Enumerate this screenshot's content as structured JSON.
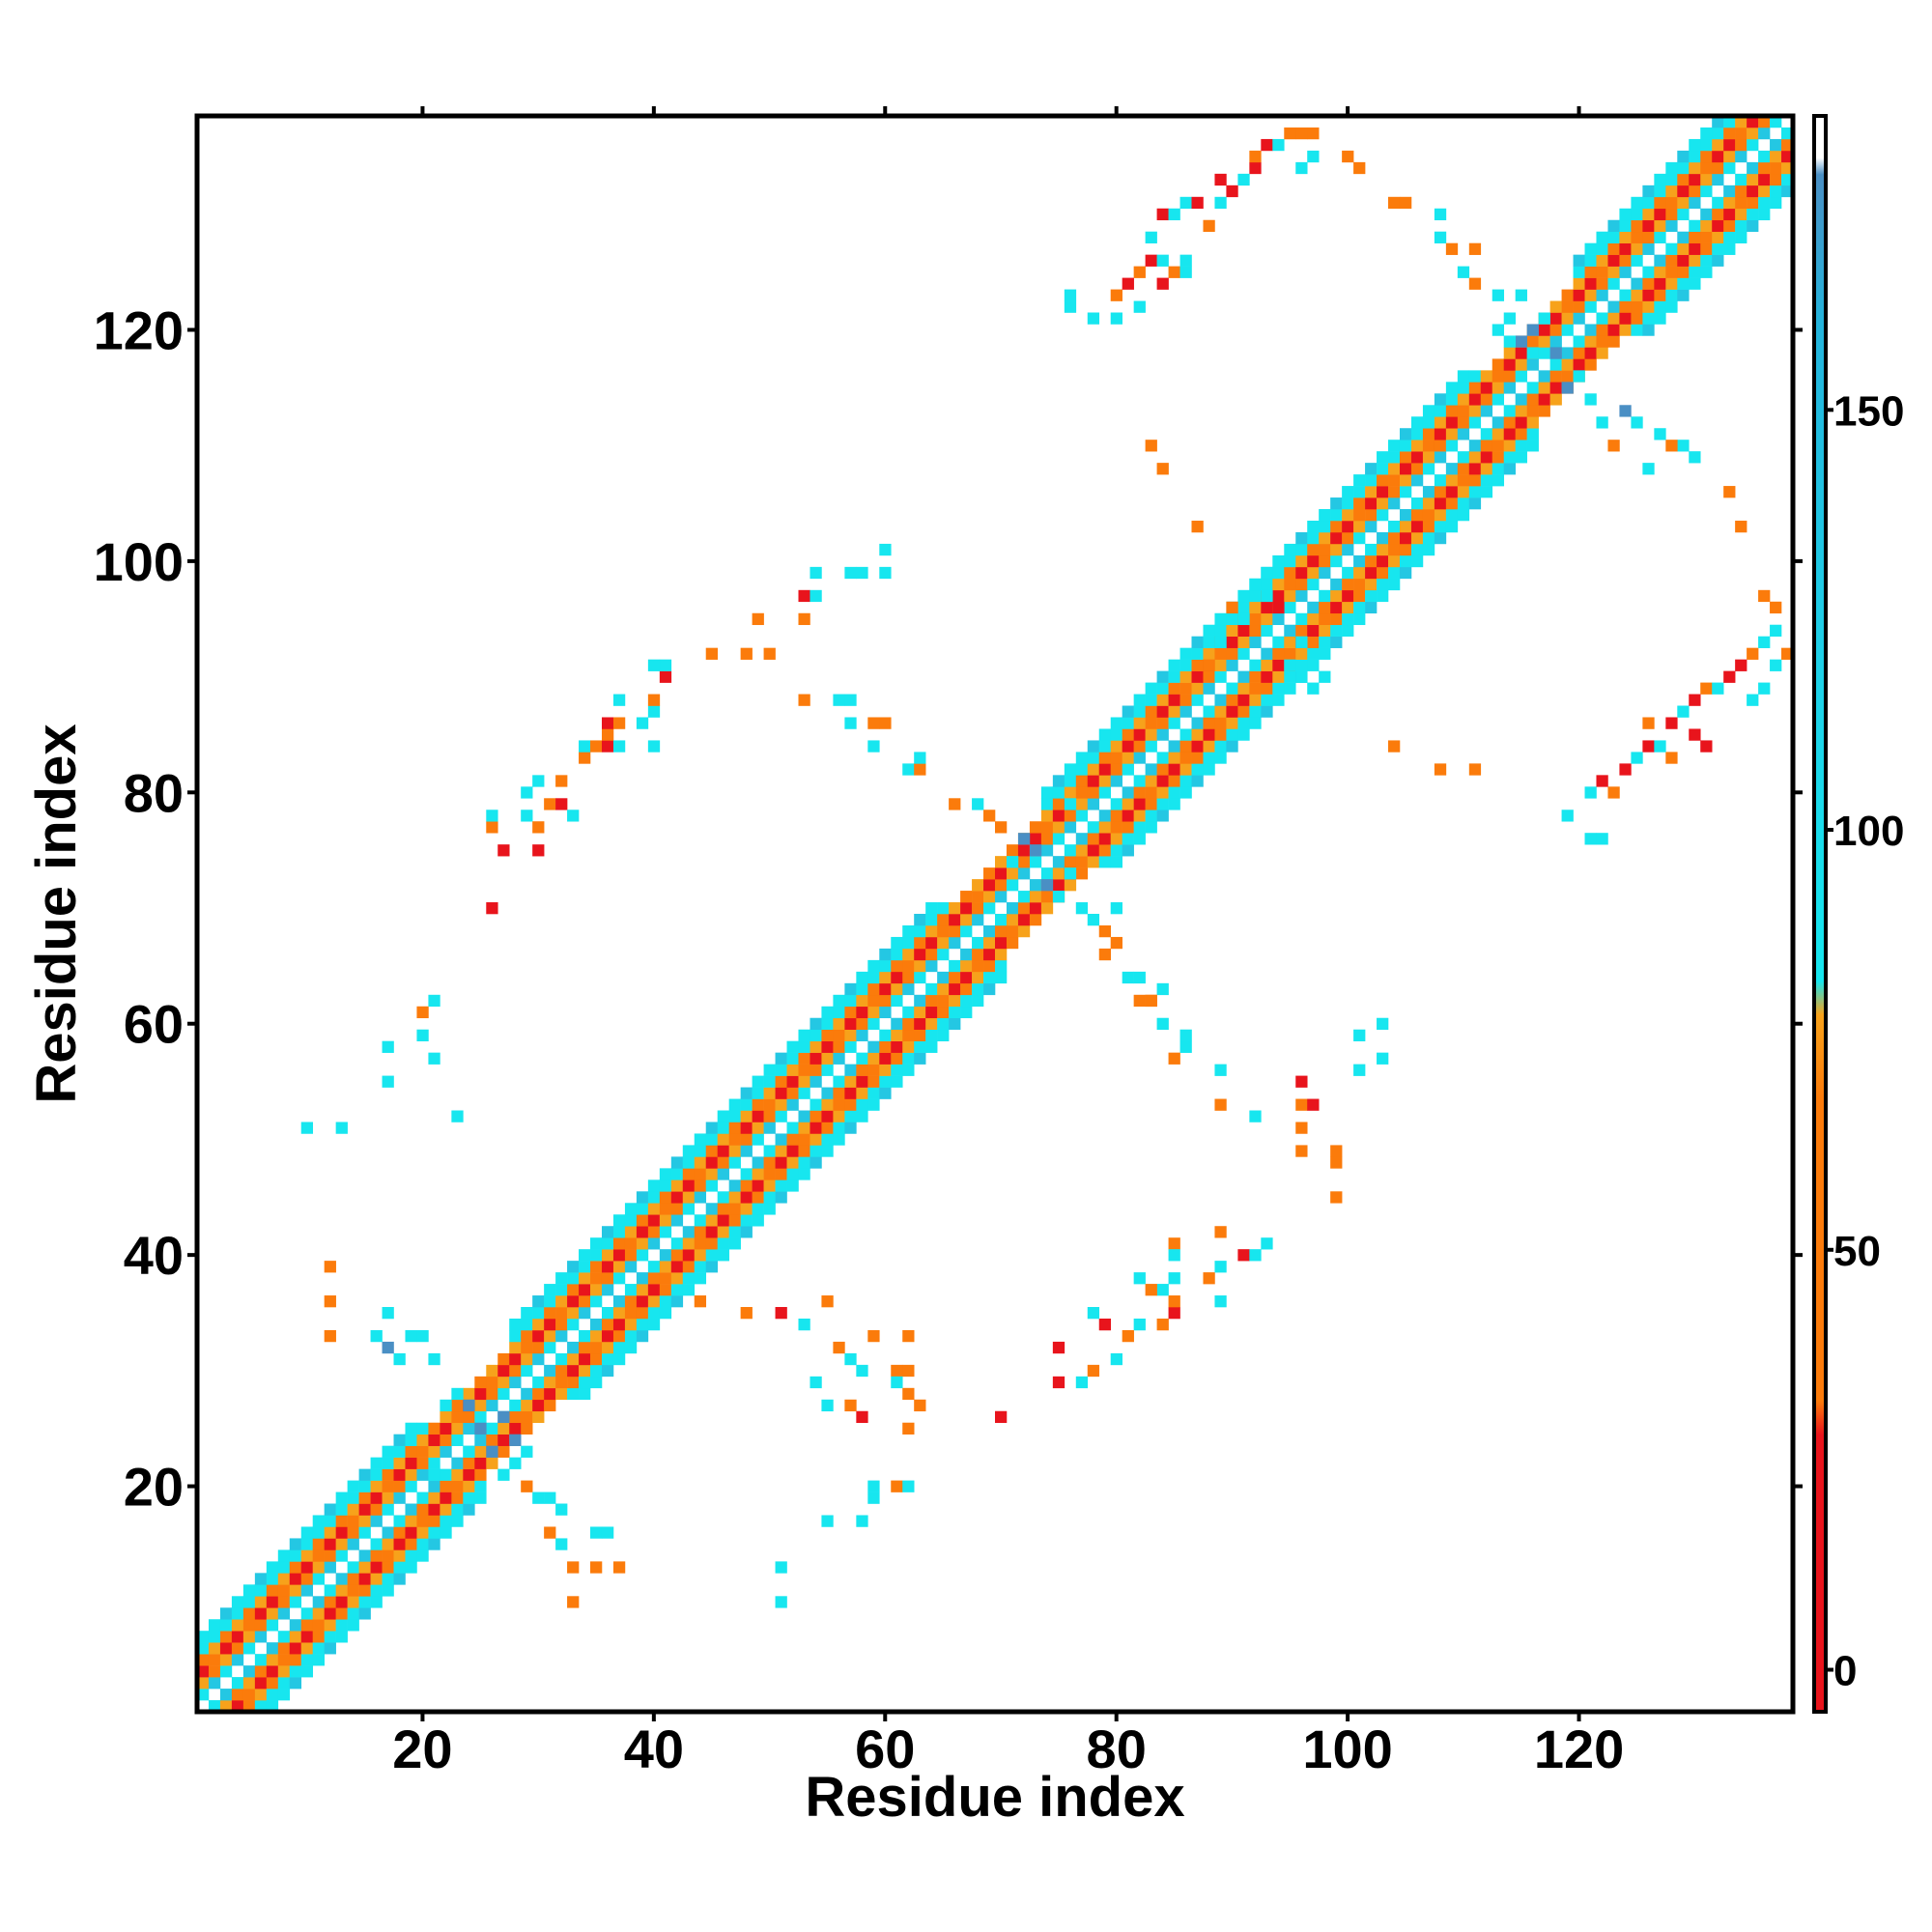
{
  "chart_data": {
    "type": "heatmap",
    "title": "",
    "xlabel": "Residue index",
    "ylabel": "Residue index",
    "xlim": [
      1,
      138
    ],
    "ylim": [
      1,
      138
    ],
    "x_ticks": [
      20,
      40,
      60,
      80,
      100,
      120
    ],
    "y_ticks": [
      20,
      40,
      60,
      80,
      100,
      120
    ],
    "grid": false,
    "legend": "none",
    "colorbar": {
      "position": "right",
      "range": [
        -5,
        185
      ],
      "ticks": [
        0,
        50,
        100,
        150
      ],
      "bands": [
        {
          "from": -5,
          "to": 30,
          "color": "#e8141c"
        },
        {
          "from": 30,
          "to": 80,
          "color": "#fb7b0b"
        },
        {
          "from": 80,
          "to": 180,
          "color": "#1fd0e8"
        },
        {
          "from": 180,
          "to": 185,
          "color": "#ffffff"
        }
      ]
    },
    "colors": {
      "red": "#e8141c",
      "orange": "#fb7b0b",
      "amber": "#f7a21b",
      "cyan": "#17e6ef",
      "sky": "#24c7e3",
      "steel": "#4a8fc4"
    },
    "band_structure": {
      "description_values": "value by sequence separation |i-j| near diagonal",
      "separation_levels": [
        {
          "sep": 0,
          "color": "white"
        },
        {
          "sep": 1,
          "color": "cyan"
        },
        {
          "sep": 2,
          "color": "orange"
        },
        {
          "sep": 3,
          "color": "red"
        },
        {
          "sep": 4,
          "color": "orange"
        },
        {
          "sep": 5,
          "color": "cyan"
        }
      ]
    },
    "helix_segments": [
      [
        1,
        25
      ],
      [
        28,
        70
      ],
      [
        74,
        116
      ],
      [
        120,
        138
      ]
    ],
    "off_diagonal_cells": [
      [
        75,
        29,
        "red"
      ],
      [
        70,
        26,
        "red"
      ],
      [
        75,
        32,
        "red"
      ],
      [
        77,
        29,
        "cyan"
      ],
      [
        78,
        30,
        "orange"
      ],
      [
        80,
        31,
        "cyan"
      ],
      [
        81,
        33,
        "orange"
      ],
      [
        82,
        34,
        "cyan"
      ],
      [
        79,
        34,
        "red"
      ],
      [
        78,
        35,
        "cyan"
      ],
      [
        84,
        34,
        "orange"
      ],
      [
        85,
        35,
        "red"
      ],
      [
        85,
        36,
        "orange"
      ],
      [
        84,
        37,
        "cyan"
      ],
      [
        89,
        36,
        "cyan"
      ],
      [
        88,
        38,
        "orange"
      ],
      [
        89,
        39,
        "cyan"
      ],
      [
        91,
        40,
        "red"
      ],
      [
        92,
        40,
        "cyan"
      ],
      [
        85,
        41,
        "orange"
      ],
      [
        89,
        42,
        "orange"
      ],
      [
        85,
        38,
        "cyan"
      ],
      [
        82,
        38,
        "cyan"
      ],
      [
        83,
        37,
        "orange"
      ],
      [
        85,
        40,
        "cyan"
      ],
      [
        51,
        10,
        "cyan"
      ],
      [
        51,
        13,
        "cyan"
      ],
      [
        55,
        17,
        "cyan"
      ],
      [
        58,
        17,
        "cyan"
      ],
      [
        59,
        19,
        "cyan"
      ],
      [
        61,
        20,
        "orange"
      ],
      [
        62,
        20,
        "cyan"
      ],
      [
        59,
        20,
        "cyan"
      ],
      [
        62,
        30,
        "orange"
      ],
      [
        62,
        33,
        "orange"
      ],
      [
        59,
        33,
        "orange"
      ],
      [
        55,
        36,
        "orange"
      ],
      [
        93,
        41,
        "cyan"
      ],
      [
        96,
        49,
        "orange"
      ],
      [
        92,
        52,
        "cyan"
      ],
      [
        96,
        53,
        "orange"
      ],
      [
        96,
        55,
        "red"
      ],
      [
        84,
        60,
        "cyan"
      ],
      [
        103,
        57,
        "cyan"
      ],
      [
        103,
        60,
        "cyan"
      ],
      [
        101,
        59,
        "cyan"
      ],
      [
        101,
        56,
        "cyan"
      ],
      [
        84,
        63,
        "cyan"
      ],
      [
        82,
        62,
        "orange"
      ],
      [
        83,
        62,
        "orange"
      ],
      [
        81,
        64,
        "cyan"
      ],
      [
        99,
        45,
        "orange"
      ],
      [
        99,
        48,
        "orange"
      ],
      [
        99,
        49,
        "orange"
      ],
      [
        97,
        53,
        "red"
      ],
      [
        96,
        51,
        "orange"
      ],
      [
        89,
        53,
        "orange"
      ],
      [
        89,
        56,
        "cyan"
      ],
      [
        86,
        58,
        "cyan"
      ],
      [
        86,
        59,
        "cyan"
      ],
      [
        85,
        57,
        "orange"
      ],
      [
        83,
        62,
        "orange"
      ],
      [
        82,
        64,
        "cyan"
      ],
      [
        13,
        51,
        "cyan"
      ],
      [
        10,
        51,
        "cyan"
      ],
      [
        17,
        55,
        "cyan"
      ],
      [
        20,
        59,
        "cyan"
      ],
      [
        20,
        61,
        "orange"
      ],
      [
        21,
        62,
        "cyan"
      ],
      [
        23,
        52,
        "cyan"
      ],
      [
        21,
        57,
        "cyan"
      ],
      [
        17,
        58,
        "cyan"
      ],
      [
        27,
        75,
        "red"
      ],
      [
        30,
        75,
        "red"
      ],
      [
        26,
        70,
        "red"
      ],
      [
        26,
        77,
        "orange"
      ],
      [
        26,
        78,
        "cyan"
      ],
      [
        29,
        78,
        "cyan"
      ],
      [
        30,
        77,
        "orange"
      ],
      [
        31,
        79,
        "orange"
      ],
      [
        29,
        80,
        "cyan"
      ],
      [
        30,
        81,
        "cyan"
      ],
      [
        32,
        81,
        "orange"
      ],
      [
        32,
        79,
        "red"
      ],
      [
        33,
        78,
        "cyan"
      ],
      [
        34,
        83,
        "orange"
      ],
      [
        34,
        84,
        "cyan"
      ],
      [
        35,
        84,
        "orange"
      ],
      [
        36,
        84,
        "red"
      ],
      [
        36,
        85,
        "orange"
      ],
      [
        36,
        86,
        "red"
      ],
      [
        37,
        84,
        "cyan"
      ],
      [
        37,
        86,
        "orange"
      ],
      [
        37,
        88,
        "cyan"
      ],
      [
        40,
        84,
        "cyan"
      ],
      [
        39,
        86,
        "cyan"
      ],
      [
        40,
        87,
        "cyan"
      ],
      [
        40,
        88,
        "orange"
      ],
      [
        41,
        90,
        "red"
      ],
      [
        41,
        91,
        "cyan"
      ],
      [
        40,
        91,
        "cyan"
      ],
      [
        45,
        92,
        "orange"
      ],
      [
        48,
        92,
        "orange"
      ],
      [
        50,
        92,
        "orange"
      ],
      [
        49,
        95,
        "orange"
      ],
      [
        53,
        95,
        "orange"
      ],
      [
        53,
        97,
        "red"
      ],
      [
        54,
        97,
        "cyan"
      ],
      [
        54,
        99,
        "cyan"
      ],
      [
        57,
        99,
        "cyan"
      ],
      [
        58,
        99,
        "cyan"
      ],
      [
        60,
        99,
        "cyan"
      ],
      [
        60,
        101,
        "cyan"
      ],
      [
        53,
        88,
        "orange"
      ],
      [
        56,
        88,
        "cyan"
      ],
      [
        57,
        88,
        "cyan"
      ],
      [
        57,
        86,
        "cyan"
      ],
      [
        60,
        86,
        "orange"
      ],
      [
        59,
        86,
        "orange"
      ],
      [
        59,
        84,
        "cyan"
      ],
      [
        62,
        82,
        "cyan"
      ],
      [
        63,
        82,
        "orange"
      ],
      [
        63,
        83,
        "cyan"
      ],
      [
        76,
        122,
        "cyan"
      ],
      [
        76,
        123,
        "cyan"
      ],
      [
        78,
        121,
        "cyan"
      ],
      [
        80,
        121,
        "cyan"
      ],
      [
        80,
        123,
        "orange"
      ],
      [
        82,
        122,
        "cyan"
      ],
      [
        81,
        124,
        "red"
      ],
      [
        82,
        125,
        "orange"
      ],
      [
        83,
        126,
        "red"
      ],
      [
        84,
        126,
        "cyan"
      ],
      [
        84,
        124,
        "red"
      ],
      [
        85,
        125,
        "orange"
      ],
      [
        86,
        125,
        "cyan"
      ],
      [
        86,
        126,
        "cyan"
      ],
      [
        83,
        128,
        "cyan"
      ],
      [
        84,
        130,
        "red"
      ],
      [
        85,
        130,
        "cyan"
      ],
      [
        86,
        131,
        "cyan"
      ],
      [
        87,
        131,
        "red"
      ],
      [
        88,
        129,
        "orange"
      ],
      [
        89,
        131,
        "cyan"
      ],
      [
        89,
        133,
        "red"
      ],
      [
        90,
        132,
        "red"
      ],
      [
        91,
        133,
        "cyan"
      ],
      [
        92,
        134,
        "red"
      ],
      [
        92,
        135,
        "orange"
      ],
      [
        93,
        136,
        "red"
      ],
      [
        94,
        136,
        "cyan"
      ],
      [
        95,
        137,
        "orange"
      ],
      [
        96,
        137,
        "orange"
      ],
      [
        97,
        137,
        "orange"
      ],
      [
        96,
        134,
        "cyan"
      ],
      [
        97,
        135,
        "cyan"
      ],
      [
        100,
        135,
        "orange"
      ],
      [
        101,
        134,
        "orange"
      ],
      [
        104,
        131,
        "orange"
      ],
      [
        105,
        131,
        "orange"
      ],
      [
        108,
        130,
        "cyan"
      ],
      [
        108,
        128,
        "cyan"
      ],
      [
        109,
        127,
        "orange"
      ],
      [
        111,
        127,
        "orange"
      ],
      [
        110,
        125,
        "cyan"
      ],
      [
        111,
        124,
        "orange"
      ],
      [
        113,
        123,
        "cyan"
      ],
      [
        114,
        121,
        "cyan"
      ],
      [
        115,
        123,
        "cyan"
      ],
      [
        122,
        76,
        "cyan"
      ],
      [
        121,
        76,
        "cyan"
      ],
      [
        119,
        78,
        "cyan"
      ],
      [
        121,
        80,
        "cyan"
      ],
      [
        123,
        80,
        "orange"
      ],
      [
        122,
        81,
        "red"
      ],
      [
        124,
        82,
        "red"
      ],
      [
        125,
        83,
        "cyan"
      ],
      [
        126,
        84,
        "red"
      ],
      [
        126,
        86,
        "orange"
      ],
      [
        128,
        86,
        "red"
      ],
      [
        129,
        87,
        "cyan"
      ],
      [
        130,
        88,
        "red"
      ],
      [
        131,
        89,
        "orange"
      ],
      [
        132,
        89,
        "cyan"
      ],
      [
        133,
        90,
        "red"
      ],
      [
        134,
        91,
        "red"
      ],
      [
        135,
        92,
        "orange"
      ],
      [
        136,
        93,
        "cyan"
      ],
      [
        137,
        94,
        "cyan"
      ],
      [
        130,
        85,
        "red"
      ],
      [
        131,
        84,
        "red"
      ],
      [
        128,
        83,
        "orange"
      ],
      [
        127,
        84,
        "cyan"
      ],
      [
        135,
        88,
        "cyan"
      ],
      [
        136,
        89,
        "cyan"
      ],
      [
        137,
        91,
        "cyan"
      ],
      [
        138,
        92,
        "orange"
      ],
      [
        137,
        96,
        "orange"
      ],
      [
        136,
        97,
        "orange"
      ],
      [
        134,
        103,
        "orange"
      ],
      [
        133,
        106,
        "orange"
      ],
      [
        130,
        109,
        "cyan"
      ],
      [
        129,
        110,
        "cyan"
      ],
      [
        128,
        110,
        "orange"
      ],
      [
        126,
        108,
        "cyan"
      ],
      [
        125,
        112,
        "cyan"
      ],
      [
        124,
        113,
        "steel"
      ],
      [
        127,
        111,
        "cyan"
      ],
      [
        122,
        112,
        "cyan"
      ],
      [
        123,
        110,
        "orange"
      ],
      [
        104,
        84,
        "orange"
      ],
      [
        108,
        82,
        "orange"
      ],
      [
        111,
        82,
        "orange"
      ],
      [
        84,
        108,
        "orange"
      ],
      [
        83,
        110,
        "orange"
      ],
      [
        87,
        103,
        "orange"
      ],
      [
        12,
        39,
        "orange"
      ],
      [
        12,
        36,
        "orange"
      ],
      [
        12,
        33,
        "orange"
      ],
      [
        16,
        33,
        "cyan"
      ],
      [
        17,
        32,
        "steel"
      ],
      [
        17,
        35,
        "cyan"
      ],
      [
        18,
        31,
        "cyan"
      ],
      [
        19,
        33,
        "cyan"
      ],
      [
        20,
        33,
        "cyan"
      ],
      [
        21,
        31,
        "cyan"
      ],
      [
        33,
        10,
        "orange"
      ],
      [
        33,
        13,
        "orange"
      ],
      [
        35,
        13,
        "orange"
      ],
      [
        37,
        13,
        "orange"
      ],
      [
        35,
        16,
        "cyan"
      ],
      [
        36,
        16,
        "cyan"
      ],
      [
        31,
        16,
        "orange"
      ],
      [
        32,
        15,
        "cyan"
      ],
      [
        32,
        18,
        "cyan"
      ],
      [
        31,
        19,
        "cyan"
      ],
      [
        29,
        20,
        "orange"
      ],
      [
        30,
        19,
        "cyan"
      ],
      [
        44,
        36,
        "orange"
      ],
      [
        48,
        35,
        "orange"
      ],
      [
        51,
        35,
        "red"
      ],
      [
        53,
        34,
        "cyan"
      ],
      [
        56,
        32,
        "orange"
      ],
      [
        57,
        31,
        "cyan"
      ],
      [
        58,
        30,
        "cyan"
      ],
      [
        61,
        30,
        "orange"
      ],
      [
        61,
        29,
        "cyan"
      ],
      [
        62,
        28,
        "orange"
      ],
      [
        63,
        27,
        "orange"
      ],
      [
        62,
        25,
        "orange"
      ],
      [
        58,
        26,
        "red"
      ],
      [
        57,
        27,
        "orange"
      ],
      [
        54,
        29,
        "cyan"
      ],
      [
        55,
        27,
        "cyan"
      ],
      [
        73,
        75,
        "steel"
      ],
      [
        72,
        76,
        "steel"
      ],
      [
        74,
        72,
        "steel"
      ],
      [
        75,
        71,
        "cyan"
      ],
      [
        71,
        74,
        "cyan"
      ],
      [
        76,
        73,
        "cyan"
      ],
      [
        77,
        70,
        "cyan"
      ],
      [
        78,
        69,
        "cyan"
      ],
      [
        79,
        68,
        "orange"
      ],
      [
        68,
        79,
        "cyan"
      ],
      [
        69,
        78,
        "orange"
      ],
      [
        70,
        77,
        "orange"
      ],
      [
        66,
        79,
        "orange"
      ],
      [
        79,
        66,
        "orange"
      ],
      [
        80,
        67,
        "orange"
      ],
      [
        76,
        79,
        "cyan"
      ],
      [
        80,
        70,
        "cyan"
      ],
      [
        89,
        93,
        "cyan"
      ],
      [
        91,
        95,
        "cyan"
      ],
      [
        92,
        98,
        "cyan"
      ],
      [
        93,
        97,
        "cyan"
      ],
      [
        94,
        96,
        "red"
      ],
      [
        95,
        91,
        "cyan"
      ],
      [
        96,
        90,
        "cyan"
      ],
      [
        97,
        89,
        "cyan"
      ],
      [
        98,
        90,
        "cyan"
      ],
      [
        93,
        99,
        "cyan"
      ],
      [
        90,
        96,
        "orange"
      ],
      [
        88,
        91,
        "orange"
      ],
      [
        96,
        93,
        "cyan"
      ],
      [
        115,
        119,
        "steel"
      ],
      [
        116,
        120,
        "steel"
      ],
      [
        118,
        118,
        "steel"
      ],
      [
        119,
        115,
        "steel"
      ],
      [
        120,
        116,
        "cyan"
      ],
      [
        121,
        114,
        "cyan"
      ],
      [
        117,
        121,
        "cyan"
      ],
      [
        116,
        118,
        "cyan"
      ],
      [
        113,
        120,
        "cyan"
      ],
      [
        114,
        119,
        "cyan"
      ],
      [
        25,
        25,
        "steel"
      ],
      [
        26,
        23,
        "steel"
      ],
      [
        27,
        26,
        "steel"
      ],
      [
        24,
        27,
        "steel"
      ],
      [
        23,
        28,
        "cyan"
      ],
      [
        22,
        27,
        "cyan"
      ],
      [
        28,
        22,
        "cyan"
      ],
      [
        27,
        21,
        "cyan"
      ],
      [
        24,
        23,
        "cyan"
      ],
      [
        21,
        21,
        "cyan"
      ],
      [
        28,
        24,
        "steel"
      ],
      [
        29,
        23,
        "cyan"
      ]
    ]
  }
}
